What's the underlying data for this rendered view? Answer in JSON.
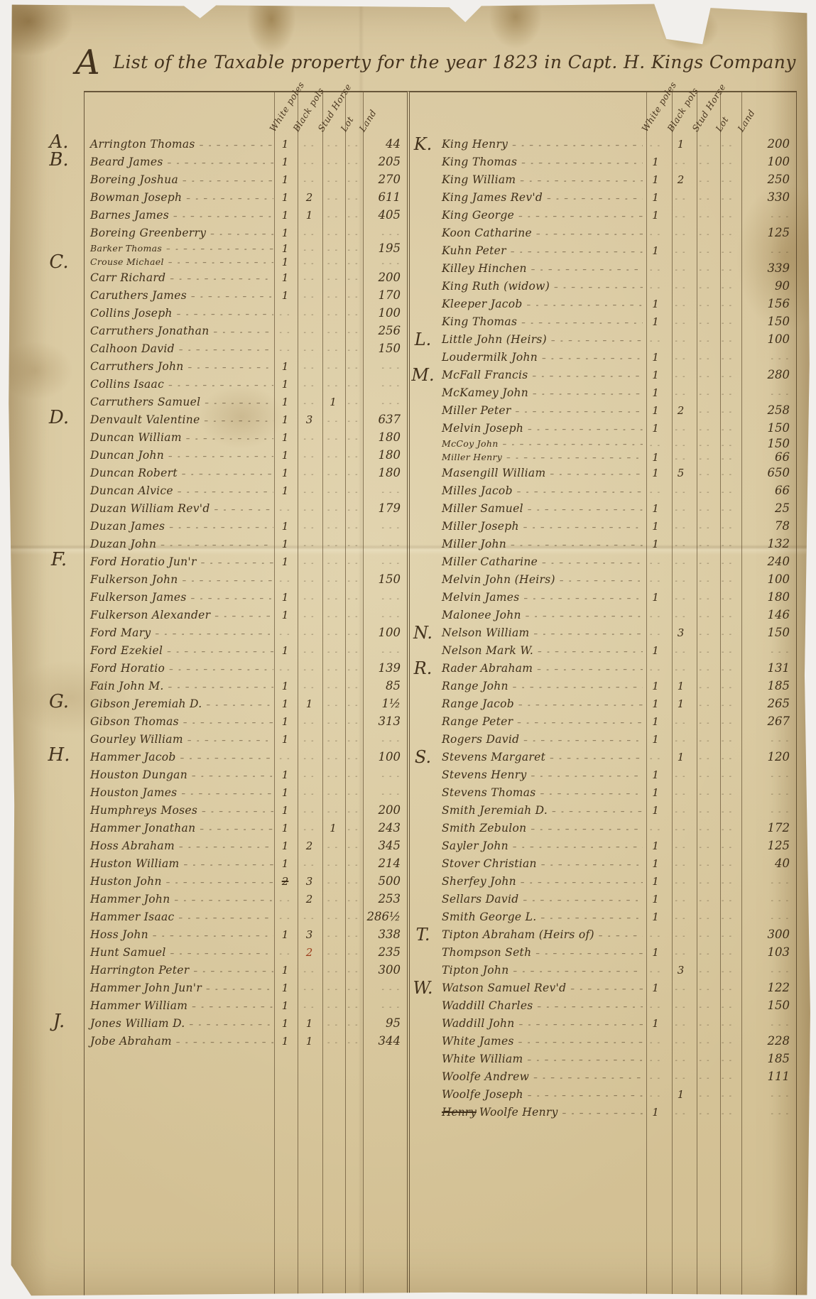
{
  "document": {
    "title_cap": "A",
    "title_rest": "List of the Taxable property for the year 1823 in Capt. H. Kings Company",
    "column_headers": [
      "White poles",
      "Black pols",
      "Stud Horse",
      "Lot",
      "Land"
    ],
    "ledgers": [
      {
        "side": "left",
        "rows": [
          {
            "letter": "A.",
            "name": "Arrington Thomas",
            "wp": "1",
            "land": "44"
          },
          {
            "letter": "B.",
            "name": "Beard James",
            "wp": "1",
            "land": "205"
          },
          {
            "name": "Boreing Joshua",
            "wp": "1",
            "land": "270"
          },
          {
            "name": "Bowman Joseph",
            "wp": "1",
            "bp": "2",
            "land": "611"
          },
          {
            "name": "Barnes James",
            "wp": "1",
            "bp": "1",
            "land": "405"
          },
          {
            "name": "Boreing Greenberry",
            "wp": "1"
          },
          {
            "name": "Barker Thomas",
            "wp": "1",
            "land": "195",
            "squeeze": true
          },
          {
            "letter": "C.",
            "name": "Crouse Michael",
            "wp": "1",
            "squeeze": true
          },
          {
            "name": "Carr Richard",
            "wp": "1",
            "land": "200"
          },
          {
            "name": "Caruthers James",
            "wp": "1",
            "land": "170"
          },
          {
            "name": "Collins Joseph",
            "land": "100"
          },
          {
            "name": "Carruthers Jonathan",
            "land": "256"
          },
          {
            "name": "Calhoon David",
            "land": "150"
          },
          {
            "name": "Carruthers John",
            "wp": "1"
          },
          {
            "name": "Collins Isaac",
            "wp": "1"
          },
          {
            "name": "Carruthers Samuel",
            "wp": "1",
            "st": "1"
          },
          {
            "letter": "D.",
            "name": "Denvault Valentine",
            "wp": "1",
            "bp": "3",
            "land": "637"
          },
          {
            "name": "Duncan William",
            "wp": "1",
            "land": "180"
          },
          {
            "name": "Duncan John",
            "wp": "1",
            "land": "180"
          },
          {
            "name": "Duncan Robert",
            "wp": "1",
            "land": "180"
          },
          {
            "name": "Duncan Alvice",
            "wp": "1"
          },
          {
            "name": "Duzan William Rev'd",
            "land": "179"
          },
          {
            "name": "Duzan James",
            "wp": "1"
          },
          {
            "name": "Duzan John",
            "wp": "1"
          },
          {
            "letter": "F.",
            "name": "Ford Horatio Jun'r",
            "wp": "1"
          },
          {
            "name": "Fulkerson John",
            "land": "150"
          },
          {
            "name": "Fulkerson James",
            "wp": "1"
          },
          {
            "name": "Fulkerson Alexander",
            "wp": "1"
          },
          {
            "name": "Ford Mary",
            "land": "100"
          },
          {
            "name": "Ford Ezekiel",
            "wp": "1"
          },
          {
            "name": "Ford Horatio",
            "land": "139"
          },
          {
            "name": "Fain John M.",
            "wp": "1",
            "land": "85"
          },
          {
            "letter": "G.",
            "name": "Gibson Jeremiah D.",
            "wp": "1",
            "bp": "1",
            "land": "1½"
          },
          {
            "name": "Gibson Thomas",
            "wp": "1",
            "land": "313"
          },
          {
            "name": "Gourley William",
            "wp": "1"
          },
          {
            "letter": "H.",
            "name": "Hammer Jacob",
            "land": "100"
          },
          {
            "name": "Houston Dungan",
            "wp": "1"
          },
          {
            "name": "Houston James",
            "wp": "1"
          },
          {
            "name": "Humphreys Moses",
            "wp": "1",
            "land": "200"
          },
          {
            "name": "Hammer Jonathan",
            "wp": "1",
            "st": "1",
            "land": "243"
          },
          {
            "name": "Hoss Abraham",
            "wp": "1",
            "bp": "2",
            "land": "345"
          },
          {
            "name": "Huston William",
            "wp": "1",
            "land": "214"
          },
          {
            "name": "Huston John",
            "wp": "2",
            "wp_struck": true,
            "bp": "3",
            "land": "500"
          },
          {
            "name": "Hammer John",
            "bp": "2",
            "land": "253"
          },
          {
            "name": "Hammer Isaac",
            "land": "286½"
          },
          {
            "name": "Hoss John",
            "wp": "1",
            "bp": "3",
            "land": "338"
          },
          {
            "name": "Hunt Samuel",
            "bp": "2",
            "bp_red": true,
            "land": "235"
          },
          {
            "name": "Harrington Peter",
            "wp": "1",
            "land": "300"
          },
          {
            "name": "Hammer John Jun'r",
            "wp": "1"
          },
          {
            "name": "Hammer William",
            "wp": "1"
          },
          {
            "letter": "J.",
            "name": "Jones William D.",
            "wp": "1",
            "bp": "1",
            "land": "95"
          },
          {
            "name": "Jobe Abraham",
            "wp": "1",
            "bp": "1",
            "land": "344"
          }
        ]
      },
      {
        "side": "right",
        "rows": [
          {
            "letter": "K.",
            "name": "King Henry",
            "bp": "1",
            "land": "200"
          },
          {
            "name": "King Thomas",
            "wp": "1",
            "land": "100"
          },
          {
            "name": "King William",
            "wp": "1",
            "bp": "2",
            "land": "250"
          },
          {
            "name": "King James Rev'd",
            "wp": "1",
            "land": "330"
          },
          {
            "name": "King George",
            "wp": "1"
          },
          {
            "name": "Koon Catharine",
            "land": "125"
          },
          {
            "name": "Kuhn Peter",
            "wp": "1"
          },
          {
            "name": "Killey Hinchen",
            "land": "339"
          },
          {
            "name": "King Ruth (widow)",
            "land": "90"
          },
          {
            "name": "Kleeper Jacob",
            "wp": "1",
            "land": "156"
          },
          {
            "name": "King Thomas",
            "wp": "1",
            "land": "150"
          },
          {
            "letter": "L.",
            "name": "Little John (Heirs)",
            "land": "100"
          },
          {
            "name": "Loudermilk John",
            "wp": "1"
          },
          {
            "letter": "M.",
            "name": "McFall Francis",
            "wp": "1",
            "land": "280"
          },
          {
            "name": "McKamey John",
            "wp": "1"
          },
          {
            "name": "Miller Peter",
            "wp": "1",
            "bp": "2",
            "land": "258"
          },
          {
            "name": "Melvin Joseph",
            "wp": "1",
            "land": "150"
          },
          {
            "name": "McCoy John",
            "land": "150",
            "squeeze": true
          },
          {
            "name": "Miller Henry",
            "wp": "1",
            "land": "66",
            "squeeze": true
          },
          {
            "name": "Masengill William",
            "wp": "1",
            "bp": "5",
            "land": "650"
          },
          {
            "name": "Milles Jacob",
            "land": "66"
          },
          {
            "name": "Miller Samuel",
            "wp": "1",
            "land": "25"
          },
          {
            "name": "Miller Joseph",
            "wp": "1",
            "land": "78"
          },
          {
            "name": "Miller John",
            "wp": "1",
            "land": "132"
          },
          {
            "name": "Miller Catharine",
            "land": "240"
          },
          {
            "name": "Melvin John (Heirs)",
            "land": "100"
          },
          {
            "name": "Melvin James",
            "wp": "1",
            "land": "180"
          },
          {
            "name": "Malonee John",
            "land": "146"
          },
          {
            "letter": "N.",
            "name": "Nelson William",
            "bp": "3",
            "land": "150"
          },
          {
            "name": "Nelson Mark W.",
            "wp": "1"
          },
          {
            "letter": "R.",
            "name": "Rader Abraham",
            "land": "131"
          },
          {
            "name": "Range John",
            "wp": "1",
            "bp": "1",
            "land": "185"
          },
          {
            "name": "Range Jacob",
            "wp": "1",
            "bp": "1",
            "land": "265"
          },
          {
            "name": "Range Peter",
            "wp": "1",
            "land": "267"
          },
          {
            "name": "Rogers David",
            "wp": "1"
          },
          {
            "letter": "S.",
            "name": "Stevens Margaret",
            "bp": "1",
            "land": "120"
          },
          {
            "name": "Stevens Henry",
            "wp": "1"
          },
          {
            "name": "Stevens Thomas",
            "wp": "1"
          },
          {
            "name": "Smith Jeremiah D.",
            "wp": "1"
          },
          {
            "name": "Smith Zebulon",
            "land": "172"
          },
          {
            "name": "Sayler John",
            "wp": "1",
            "land": "125"
          },
          {
            "name": "Stover Christian",
            "wp": "1",
            "land": "40"
          },
          {
            "name": "Sherfey John",
            "wp": "1"
          },
          {
            "name": "Sellars David",
            "wp": "1"
          },
          {
            "name": "Smith George L.",
            "wp": "1"
          },
          {
            "letter": "T.",
            "name": "Tipton Abraham (Heirs of)",
            "land": "300"
          },
          {
            "name": "Thompson Seth",
            "wp": "1",
            "land": "103"
          },
          {
            "name": "Tipton John",
            "bp": "3"
          },
          {
            "letter": "W.",
            "name": "Watson Samuel Rev'd",
            "wp": "1",
            "land": "122"
          },
          {
            "name": "Waddill Charles",
            "land": "150"
          },
          {
            "name": "Waddill John",
            "wp": "1"
          },
          {
            "name": "White James",
            "land": "228"
          },
          {
            "name": "White William",
            "land": "185"
          },
          {
            "name": "Woolfe Andrew",
            "land": "111"
          },
          {
            "name": "Woolfe Joseph",
            "bp": "1"
          },
          {
            "name": "Woolfe Henry",
            "strike_prefix": "Henry",
            "wp": "1"
          }
        ]
      }
    ]
  }
}
